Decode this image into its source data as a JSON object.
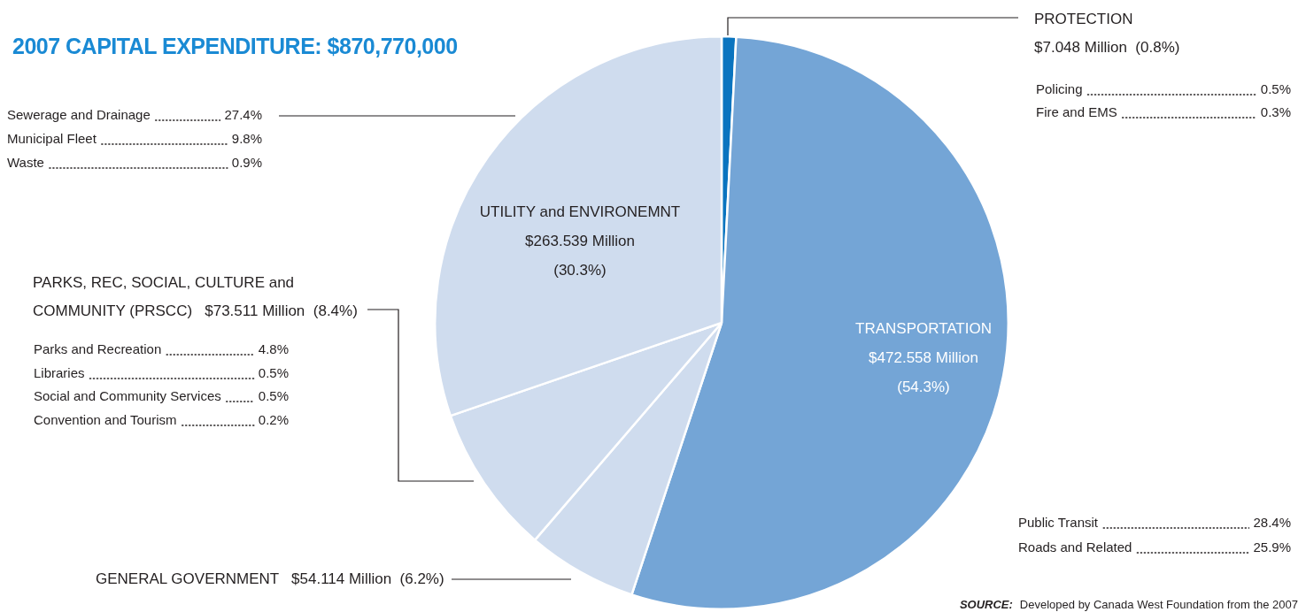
{
  "chart_data": {
    "type": "pie",
    "title": "2007 CAPITAL EXPENDITURE: $870,770,000",
    "categories": [
      "PROTECTION",
      "TRANSPORTATION",
      "GENERAL GOVERNMENT",
      "PARKS, REC, SOCIAL, CULTURE and COMMUNITY (PRSCC)",
      "UTILITY and ENVIRONEMNT"
    ],
    "values": [
      7.048,
      472.558,
      54.114,
      73.511,
      263.539
    ],
    "colors": [
      "#0a74bf",
      "#74a5d6",
      "#cfdcee",
      "#cfdcee",
      "#cfdcee"
    ],
    "value_labels": [
      "$7.048 Million  (0.8%)",
      "$472.558 Million (54.3%)",
      "$54.114 Million  (6.2%)",
      "$73.511 Million  (8.4%)",
      "$263.539 Million (30.3%)"
    ],
    "annotations": [
      "Policing 0.5%",
      "Fire and EMS 0.3%",
      "Public Transit 28.4%",
      "Roads and Related 25.9%",
      "Sewerage and Drainage 27.4%",
      "Municipal Fleet 9.8%",
      "Waste 0.9%",
      "Parks and Recreation 4.8%",
      "Libraries 0.5%",
      "Social and Community Services 0.5%",
      "Convention and Tourism 0.2%",
      "SOURCE: Developed by Canada West Foundation from the 2007"
    ],
    "legend": false
  }
}
